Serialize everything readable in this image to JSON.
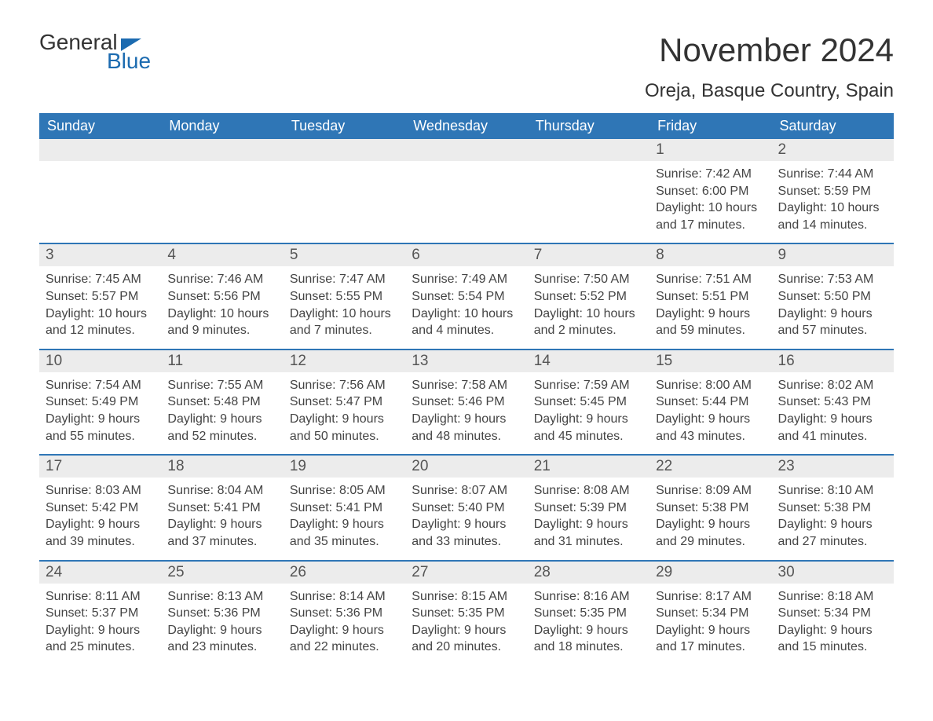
{
  "logo": {
    "word1": "General",
    "word2": "Blue"
  },
  "title": "November 2024",
  "location": "Oreja, Basque Country, Spain",
  "colors": {
    "header_bg": "#2f76b6",
    "header_text": "#ffffff",
    "daynum_bg": "#ececec",
    "week_border": "#2f76b6",
    "logo_blue": "#1c6bb0"
  },
  "daysOfWeek": [
    "Sunday",
    "Monday",
    "Tuesday",
    "Wednesday",
    "Thursday",
    "Friday",
    "Saturday"
  ],
  "weeks": [
    [
      {
        "n": "",
        "sunrise": "",
        "sunset": "",
        "daylight": ""
      },
      {
        "n": "",
        "sunrise": "",
        "sunset": "",
        "daylight": ""
      },
      {
        "n": "",
        "sunrise": "",
        "sunset": "",
        "daylight": ""
      },
      {
        "n": "",
        "sunrise": "",
        "sunset": "",
        "daylight": ""
      },
      {
        "n": "",
        "sunrise": "",
        "sunset": "",
        "daylight": ""
      },
      {
        "n": "1",
        "sunrise": "7:42 AM",
        "sunset": "6:00 PM",
        "daylight": "10 hours and 17 minutes."
      },
      {
        "n": "2",
        "sunrise": "7:44 AM",
        "sunset": "5:59 PM",
        "daylight": "10 hours and 14 minutes."
      }
    ],
    [
      {
        "n": "3",
        "sunrise": "7:45 AM",
        "sunset": "5:57 PM",
        "daylight": "10 hours and 12 minutes."
      },
      {
        "n": "4",
        "sunrise": "7:46 AM",
        "sunset": "5:56 PM",
        "daylight": "10 hours and 9 minutes."
      },
      {
        "n": "5",
        "sunrise": "7:47 AM",
        "sunset": "5:55 PM",
        "daylight": "10 hours and 7 minutes."
      },
      {
        "n": "6",
        "sunrise": "7:49 AM",
        "sunset": "5:54 PM",
        "daylight": "10 hours and 4 minutes."
      },
      {
        "n": "7",
        "sunrise": "7:50 AM",
        "sunset": "5:52 PM",
        "daylight": "10 hours and 2 minutes."
      },
      {
        "n": "8",
        "sunrise": "7:51 AM",
        "sunset": "5:51 PM",
        "daylight": "9 hours and 59 minutes."
      },
      {
        "n": "9",
        "sunrise": "7:53 AM",
        "sunset": "5:50 PM",
        "daylight": "9 hours and 57 minutes."
      }
    ],
    [
      {
        "n": "10",
        "sunrise": "7:54 AM",
        "sunset": "5:49 PM",
        "daylight": "9 hours and 55 minutes."
      },
      {
        "n": "11",
        "sunrise": "7:55 AM",
        "sunset": "5:48 PM",
        "daylight": "9 hours and 52 minutes."
      },
      {
        "n": "12",
        "sunrise": "7:56 AM",
        "sunset": "5:47 PM",
        "daylight": "9 hours and 50 minutes."
      },
      {
        "n": "13",
        "sunrise": "7:58 AM",
        "sunset": "5:46 PM",
        "daylight": "9 hours and 48 minutes."
      },
      {
        "n": "14",
        "sunrise": "7:59 AM",
        "sunset": "5:45 PM",
        "daylight": "9 hours and 45 minutes."
      },
      {
        "n": "15",
        "sunrise": "8:00 AM",
        "sunset": "5:44 PM",
        "daylight": "9 hours and 43 minutes."
      },
      {
        "n": "16",
        "sunrise": "8:02 AM",
        "sunset": "5:43 PM",
        "daylight": "9 hours and 41 minutes."
      }
    ],
    [
      {
        "n": "17",
        "sunrise": "8:03 AM",
        "sunset": "5:42 PM",
        "daylight": "9 hours and 39 minutes."
      },
      {
        "n": "18",
        "sunrise": "8:04 AM",
        "sunset": "5:41 PM",
        "daylight": "9 hours and 37 minutes."
      },
      {
        "n": "19",
        "sunrise": "8:05 AM",
        "sunset": "5:41 PM",
        "daylight": "9 hours and 35 minutes."
      },
      {
        "n": "20",
        "sunrise": "8:07 AM",
        "sunset": "5:40 PM",
        "daylight": "9 hours and 33 minutes."
      },
      {
        "n": "21",
        "sunrise": "8:08 AM",
        "sunset": "5:39 PM",
        "daylight": "9 hours and 31 minutes."
      },
      {
        "n": "22",
        "sunrise": "8:09 AM",
        "sunset": "5:38 PM",
        "daylight": "9 hours and 29 minutes."
      },
      {
        "n": "23",
        "sunrise": "8:10 AM",
        "sunset": "5:38 PM",
        "daylight": "9 hours and 27 minutes."
      }
    ],
    [
      {
        "n": "24",
        "sunrise": "8:11 AM",
        "sunset": "5:37 PM",
        "daylight": "9 hours and 25 minutes."
      },
      {
        "n": "25",
        "sunrise": "8:13 AM",
        "sunset": "5:36 PM",
        "daylight": "9 hours and 23 minutes."
      },
      {
        "n": "26",
        "sunrise": "8:14 AM",
        "sunset": "5:36 PM",
        "daylight": "9 hours and 22 minutes."
      },
      {
        "n": "27",
        "sunrise": "8:15 AM",
        "sunset": "5:35 PM",
        "daylight": "9 hours and 20 minutes."
      },
      {
        "n": "28",
        "sunrise": "8:16 AM",
        "sunset": "5:35 PM",
        "daylight": "9 hours and 18 minutes."
      },
      {
        "n": "29",
        "sunrise": "8:17 AM",
        "sunset": "5:34 PM",
        "daylight": "9 hours and 17 minutes."
      },
      {
        "n": "30",
        "sunrise": "8:18 AM",
        "sunset": "5:34 PM",
        "daylight": "9 hours and 15 minutes."
      }
    ]
  ],
  "labels": {
    "sunrise": "Sunrise: ",
    "sunset": "Sunset: ",
    "daylight": "Daylight: "
  }
}
